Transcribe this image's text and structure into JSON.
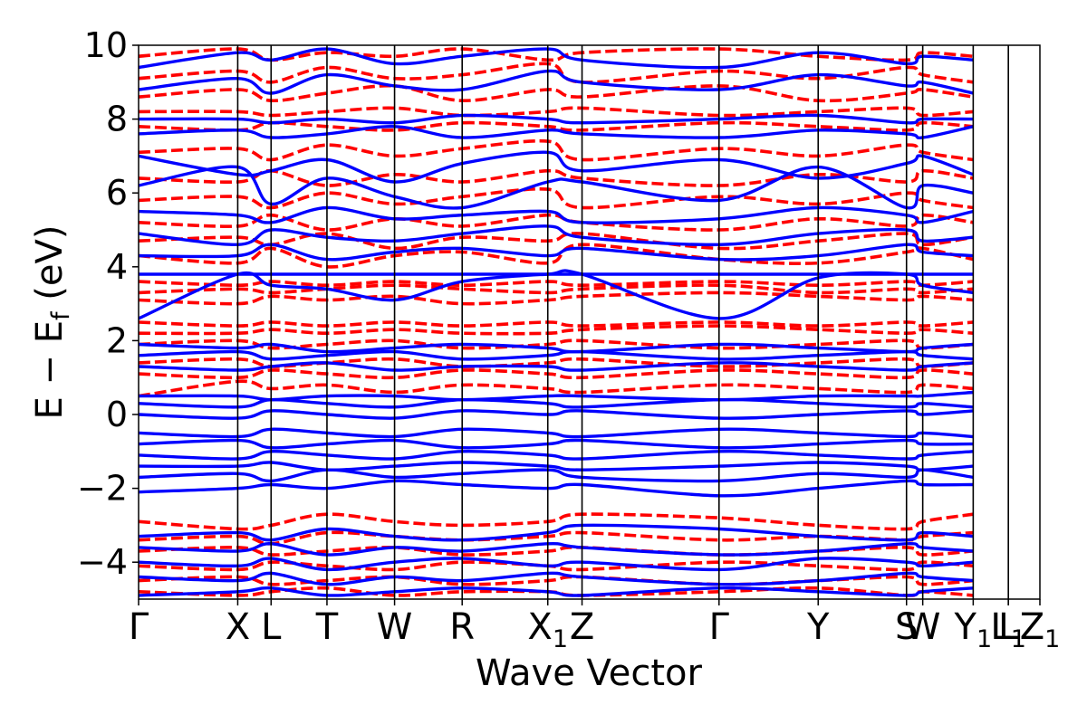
{
  "chart_data": {
    "type": "line",
    "title": "",
    "xlabel": "Wave Vector",
    "ylabel": "E − E",
    "ylabel_sub": "f",
    "ylabel_unit": " (eV)",
    "ylim": [
      -5,
      10
    ],
    "grid": false,
    "legend": "none",
    "y_ticks": [
      -4,
      -2,
      0,
      2,
      4,
      6,
      8,
      10
    ],
    "y_tick_labels": [
      "−4",
      "−2",
      "0",
      "2",
      "4",
      "6",
      "8",
      "10"
    ],
    "x_range": [
      0,
      1
    ],
    "kpoints": [
      {
        "label": "Γ",
        "sub": "",
        "x": 0.0
      },
      {
        "label": "X",
        "sub": "",
        "x": 0.11
      },
      {
        "label": "L",
        "sub": "",
        "x": 0.147
      },
      {
        "label": "T",
        "sub": "",
        "x": 0.209
      },
      {
        "label": "W",
        "sub": "",
        "x": 0.284
      },
      {
        "label": "R",
        "sub": "",
        "x": 0.359
      },
      {
        "label": "X",
        "sub": "1",
        "x": 0.454
      },
      {
        "label": "Z",
        "sub": "",
        "x": 0.492
      },
      {
        "label": "Γ",
        "sub": "",
        "x": 0.644
      },
      {
        "label": "Y",
        "sub": "",
        "x": 0.754
      },
      {
        "label": "S",
        "sub": "",
        "x": 0.852
      },
      {
        "label": "W",
        "sub": "",
        "x": 0.87
      },
      {
        "label": "Y",
        "sub": "1",
        "x": 0.926
      },
      {
        "label": "L",
        "sub": "",
        "x": 0.965
      },
      {
        "label": "L",
        "sub": "1",
        "x": 0.965
      },
      {
        "label": "Z",
        "sub": "1",
        "x": 1.0
      }
    ],
    "colors": {
      "spin_up": "#0000ff",
      "spin_down": "#ff0000",
      "frame": "#000000"
    },
    "series": [
      {
        "style": "solid",
        "color": "#0000ff",
        "bands": [
          [
            -4.9,
            -4.8,
            -4.7,
            -4.9,
            -4.8,
            -4.7,
            -4.8,
            -4.9,
            -4.7,
            -4.8,
            -4.9,
            -4.8,
            -4.7
          ],
          [
            -4.4,
            -4.5,
            -4.3,
            -4.6,
            -4.4,
            -4.5,
            -4.3,
            -4.4,
            -4.6,
            -4.5,
            -4.3,
            -4.4,
            -4.5
          ],
          [
            -4.0,
            -4.1,
            -3.9,
            -4.2,
            -4.0,
            -3.9,
            -4.1,
            -4.0,
            -4.2,
            -3.9,
            -4.0,
            -4.1,
            -4.0
          ],
          [
            -3.6,
            -3.7,
            -3.5,
            -3.8,
            -3.6,
            -3.7,
            -3.5,
            -3.6,
            -3.8,
            -3.7,
            -3.5,
            -3.6,
            -3.7
          ],
          [
            -3.3,
            -3.2,
            -3.4,
            -3.1,
            -3.3,
            -3.4,
            -3.2,
            -3.0,
            -3.1,
            -3.3,
            -3.4,
            -3.2,
            -3.3
          ],
          [
            -2.1,
            -2.0,
            -1.9,
            -2.0,
            -1.8,
            -1.9,
            -2.0,
            -1.9,
            -2.2,
            -2.0,
            -1.8,
            -1.9,
            -1.9
          ],
          [
            -1.7,
            -1.6,
            -1.8,
            -1.5,
            -1.7,
            -1.6,
            -1.5,
            -1.7,
            -1.8,
            -1.6,
            -1.7,
            -1.5,
            -1.7
          ],
          [
            -1.4,
            -1.4,
            -1.3,
            -1.5,
            -1.4,
            -1.3,
            -1.4,
            -1.5,
            -1.4,
            -1.3,
            -1.4,
            -1.5,
            -1.4
          ],
          [
            -1.1,
            -1.2,
            -1.0,
            -1.1,
            -1.2,
            -1.0,
            -1.1,
            -1.2,
            -1.0,
            -1.1,
            -1.2,
            -1.1,
            -1.0
          ],
          [
            -0.8,
            -0.7,
            -0.9,
            -0.8,
            -0.7,
            -0.9,
            -0.8,
            -0.7,
            -0.9,
            -0.8,
            -0.7,
            -0.8,
            -0.8
          ],
          [
            -0.5,
            -0.6,
            -0.4,
            -0.5,
            -0.6,
            -0.4,
            -0.5,
            -0.6,
            -0.4,
            -0.5,
            -0.6,
            -0.5,
            -0.6
          ],
          [
            0.0,
            -0.1,
            0.1,
            0.0,
            -0.1,
            0.1,
            0.0,
            0.1,
            -0.1,
            0.0,
            0.1,
            0.0,
            0.1
          ],
          [
            0.3,
            0.2,
            0.4,
            0.3,
            0.2,
            0.4,
            0.3,
            0.2,
            0.4,
            0.3,
            0.2,
            0.3,
            0.2
          ],
          [
            0.5,
            0.5,
            0.4,
            0.5,
            0.5,
            0.4,
            0.5,
            0.5,
            0.4,
            0.5,
            0.5,
            0.5,
            0.6
          ],
          [
            1.3,
            1.2,
            1.3,
            1.4,
            1.2,
            1.3,
            1.3,
            1.2,
            1.4,
            1.3,
            1.2,
            1.3,
            1.4
          ],
          [
            1.6,
            1.7,
            1.5,
            1.6,
            1.7,
            1.5,
            1.6,
            1.7,
            1.5,
            1.6,
            1.7,
            1.6,
            1.5
          ],
          [
            1.9,
            1.8,
            1.9,
            1.7,
            1.8,
            1.9,
            1.8,
            1.7,
            1.9,
            1.8,
            1.7,
            1.8,
            1.9
          ],
          [
            2.6,
            3.8,
            3.5,
            3.4,
            3.1,
            3.6,
            3.8,
            3.8,
            2.6,
            3.7,
            3.8,
            3.5,
            3.3
          ],
          [
            3.8,
            3.8,
            3.8,
            3.8,
            3.8,
            3.8,
            3.8,
            3.8,
            3.8,
            3.8,
            3.8,
            3.8,
            3.8
          ],
          [
            4.3,
            4.3,
            4.6,
            4.2,
            4.4,
            4.5,
            4.3,
            4.5,
            4.2,
            4.3,
            4.6,
            4.4,
            4.3
          ],
          [
            4.9,
            4.6,
            5.0,
            4.8,
            4.7,
            4.9,
            5.1,
            4.8,
            4.6,
            4.9,
            5.0,
            4.7,
            4.8
          ],
          [
            5.5,
            5.4,
            5.2,
            5.6,
            5.3,
            5.4,
            5.5,
            5.2,
            5.3,
            5.6,
            5.4,
            5.2,
            5.5
          ],
          [
            6.2,
            6.7,
            5.7,
            6.4,
            5.9,
            5.6,
            6.3,
            6.3,
            5.8,
            6.7,
            5.6,
            6.2,
            6.0
          ],
          [
            7.0,
            6.5,
            6.6,
            6.9,
            6.3,
            6.8,
            7.1,
            6.6,
            6.9,
            6.4,
            6.8,
            7.0,
            6.5
          ],
          [
            7.6,
            7.7,
            7.5,
            7.6,
            7.8,
            7.5,
            7.7,
            7.6,
            7.5,
            7.7,
            7.6,
            7.5,
            7.8
          ],
          [
            8.0,
            8.0,
            7.9,
            8.0,
            7.9,
            8.1,
            8.0,
            7.9,
            8.0,
            8.1,
            7.9,
            8.0,
            8.0
          ],
          [
            8.8,
            9.1,
            8.7,
            9.2,
            8.9,
            8.8,
            9.3,
            9.0,
            8.8,
            9.2,
            8.9,
            9.0,
            8.7
          ],
          [
            9.4,
            9.8,
            9.6,
            9.9,
            9.5,
            9.7,
            9.9,
            9.6,
            9.4,
            9.8,
            9.5,
            9.7,
            9.6
          ]
        ]
      },
      {
        "style": "dashed",
        "color": "#ff0000",
        "bands": [
          [
            -4.8,
            -4.9,
            -4.8,
            -4.7,
            -4.9,
            -4.8,
            -4.8,
            -4.9,
            -4.8,
            -4.7,
            -4.9,
            -4.8,
            -4.9
          ],
          [
            -4.5,
            -4.4,
            -4.6,
            -4.5,
            -4.4,
            -4.6,
            -4.5,
            -4.4,
            -4.6,
            -4.5,
            -4.4,
            -4.6,
            -4.5
          ],
          [
            -4.1,
            -4.2,
            -4.0,
            -4.1,
            -4.2,
            -4.0,
            -4.1,
            -4.2,
            -4.0,
            -4.1,
            -4.2,
            -4.0,
            -4.1
          ],
          [
            -3.7,
            -3.6,
            -3.8,
            -3.7,
            -3.6,
            -3.8,
            -3.7,
            -3.6,
            -3.8,
            -3.7,
            -3.6,
            -3.8,
            -3.7
          ],
          [
            -3.4,
            -3.3,
            -3.5,
            -3.2,
            -3.3,
            -3.4,
            -3.3,
            -3.2,
            -3.4,
            -3.3,
            -3.4,
            -3.3,
            -3.2
          ],
          [
            -2.9,
            -3.1,
            -3.0,
            -2.7,
            -2.9,
            -3.0,
            -2.9,
            -2.7,
            -2.8,
            -3.0,
            -3.1,
            -2.9,
            -2.7
          ],
          [
            0.5,
            0.9,
            0.7,
            0.8,
            0.6,
            0.8,
            0.7,
            0.6,
            0.8,
            0.7,
            0.6,
            0.8,
            0.7
          ],
          [
            1.1,
            1.0,
            1.2,
            1.1,
            1.0,
            1.2,
            1.1,
            1.0,
            1.2,
            1.1,
            1.0,
            1.2,
            1.1
          ],
          [
            1.4,
            1.5,
            1.3,
            1.4,
            1.5,
            1.3,
            1.4,
            1.5,
            1.3,
            1.4,
            1.5,
            1.3,
            1.4
          ],
          [
            1.9,
            2.0,
            1.8,
            1.9,
            2.0,
            1.8,
            1.9,
            2.0,
            1.8,
            1.9,
            2.0,
            1.8,
            1.9
          ],
          [
            2.2,
            2.2,
            2.3,
            2.2,
            2.3,
            2.2,
            2.2,
            2.3,
            2.4,
            2.3,
            2.2,
            2.3,
            2.2
          ],
          [
            2.5,
            2.4,
            2.5,
            2.4,
            2.5,
            2.4,
            2.5,
            2.4,
            2.5,
            2.4,
            2.5,
            2.4,
            2.5
          ],
          [
            3.1,
            3.0,
            3.2,
            3.1,
            3.2,
            3.0,
            3.1,
            3.2,
            3.3,
            3.2,
            3.1,
            3.2,
            3.1
          ],
          [
            3.3,
            3.4,
            3.3,
            3.4,
            3.5,
            3.4,
            3.3,
            3.4,
            3.5,
            3.3,
            3.4,
            3.3,
            3.4
          ],
          [
            3.6,
            3.5,
            3.6,
            3.5,
            3.6,
            3.5,
            3.6,
            3.5,
            3.6,
            3.5,
            3.6,
            3.5,
            3.6
          ],
          [
            4.3,
            4.1,
            4.5,
            4.0,
            4.3,
            4.4,
            4.1,
            4.6,
            4.2,
            4.1,
            4.4,
            4.5,
            4.2
          ],
          [
            4.7,
            4.8,
            4.6,
            4.9,
            4.5,
            4.8,
            4.7,
            4.9,
            4.5,
            4.7,
            4.9,
            4.6,
            4.8
          ],
          [
            5.2,
            5.1,
            5.4,
            5.0,
            5.3,
            5.1,
            5.4,
            5.2,
            5.0,
            5.3,
            5.1,
            5.4,
            5.2
          ],
          [
            5.8,
            5.9,
            5.6,
            6.0,
            5.7,
            5.9,
            6.1,
            5.6,
            5.9,
            5.7,
            6.0,
            5.8,
            5.6
          ],
          [
            6.4,
            6.3,
            6.6,
            6.2,
            6.5,
            6.3,
            6.6,
            6.4,
            6.2,
            6.5,
            6.3,
            6.6,
            6.4
          ],
          [
            7.1,
            7.2,
            6.9,
            7.3,
            7.0,
            7.2,
            7.4,
            6.9,
            7.2,
            7.0,
            7.3,
            7.1,
            6.9
          ],
          [
            7.8,
            7.7,
            7.9,
            7.8,
            7.7,
            7.9,
            7.8,
            7.7,
            7.9,
            7.8,
            7.7,
            7.9,
            7.8
          ],
          [
            8.2,
            8.2,
            8.1,
            8.2,
            8.3,
            8.1,
            8.2,
            8.3,
            8.1,
            8.2,
            8.3,
            8.1,
            8.2
          ],
          [
            8.6,
            8.8,
            8.5,
            8.7,
            8.9,
            8.5,
            8.8,
            8.6,
            8.9,
            8.5,
            8.7,
            8.8,
            8.6
          ],
          [
            9.1,
            9.3,
            9.0,
            9.4,
            9.1,
            9.2,
            9.5,
            9.0,
            9.3,
            9.1,
            9.4,
            9.2,
            9.0
          ],
          [
            9.7,
            9.9,
            9.6,
            9.8,
            9.7,
            9.9,
            9.6,
            9.8,
            9.9,
            9.7,
            9.6,
            9.8,
            9.7
          ]
        ]
      }
    ]
  }
}
